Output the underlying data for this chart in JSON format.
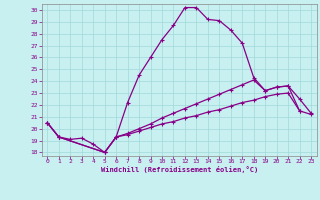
{
  "xlabel": "Windchill (Refroidissement éolien,°C)",
  "bg_color": "#c8f0f0",
  "grid_color": "#a0d8d8",
  "line_color": "#880088",
  "xlim": [
    -0.5,
    23.5
  ],
  "ylim": [
    17.7,
    30.5
  ],
  "yticks": [
    18,
    19,
    20,
    21,
    22,
    23,
    24,
    25,
    26,
    27,
    28,
    29,
    30
  ],
  "xticks": [
    0,
    1,
    2,
    3,
    4,
    5,
    6,
    7,
    8,
    9,
    10,
    11,
    12,
    13,
    14,
    15,
    16,
    17,
    18,
    19,
    20,
    21,
    22,
    23
  ],
  "line1_x": [
    0,
    1,
    2,
    3,
    4,
    5,
    6,
    7,
    8,
    9,
    10,
    11,
    12,
    13,
    14,
    15,
    16,
    17,
    18,
    19,
    20,
    21,
    22
  ],
  "line1_y": [
    20.5,
    19.3,
    19.1,
    19.2,
    18.7,
    18.0,
    19.3,
    22.2,
    24.5,
    26.0,
    27.5,
    28.7,
    30.2,
    30.2,
    29.2,
    29.1,
    28.3,
    27.2,
    24.3,
    23.2,
    23.5,
    23.6,
    21.5
  ],
  "line2_x": [
    0,
    1,
    5,
    6,
    7,
    8,
    9,
    10,
    11,
    12,
    13,
    14,
    15,
    16,
    17,
    18,
    19,
    20,
    21,
    22,
    23
  ],
  "line2_y": [
    20.5,
    19.3,
    18.0,
    19.3,
    19.6,
    20.0,
    20.4,
    20.9,
    21.3,
    21.7,
    22.1,
    22.5,
    22.9,
    23.3,
    23.7,
    24.1,
    23.2,
    23.5,
    23.6,
    22.5,
    21.3
  ],
  "line3_x": [
    0,
    1,
    5,
    6,
    7,
    8,
    9,
    10,
    11,
    12,
    13,
    14,
    15,
    16,
    17,
    18,
    19,
    20,
    21,
    22,
    23
  ],
  "line3_y": [
    20.5,
    19.3,
    18.0,
    19.3,
    19.5,
    19.8,
    20.1,
    20.4,
    20.6,
    20.9,
    21.1,
    21.4,
    21.6,
    21.9,
    22.2,
    22.4,
    22.7,
    22.9,
    23.0,
    21.5,
    21.2
  ],
  "markersize": 3,
  "linewidth": 0.9
}
